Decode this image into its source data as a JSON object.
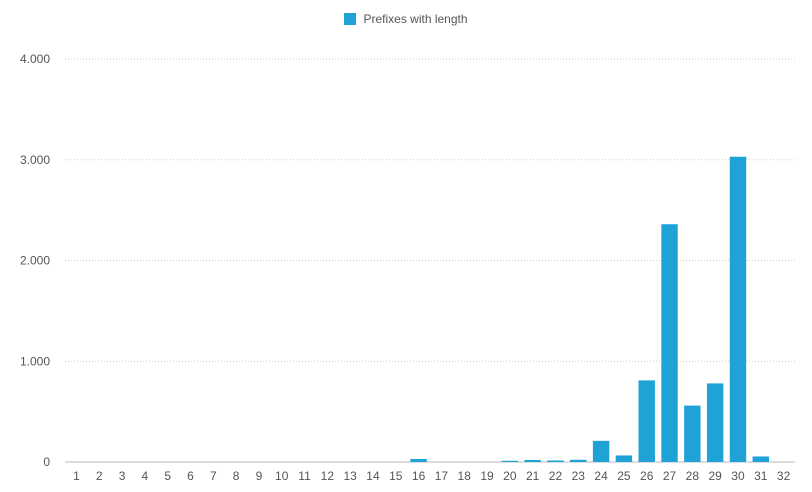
{
  "legend": {
    "label": "Prefixes with length",
    "color": "#1FA2D6"
  },
  "chart_data": {
    "type": "bar",
    "categories": [
      "1",
      "2",
      "3",
      "4",
      "5",
      "6",
      "7",
      "8",
      "9",
      "10",
      "11",
      "12",
      "13",
      "14",
      "15",
      "16",
      "17",
      "18",
      "19",
      "20",
      "21",
      "22",
      "23",
      "24",
      "25",
      "26",
      "27",
      "28",
      "29",
      "30",
      "31",
      "32"
    ],
    "series": [
      {
        "name": "Prefixes with length",
        "values": [
          0,
          0,
          0,
          0,
          0,
          0,
          0,
          0,
          0,
          0,
          0,
          0,
          0,
          0,
          0,
          30,
          0,
          0,
          0,
          12,
          20,
          15,
          22,
          210,
          65,
          810,
          2360,
          560,
          780,
          3030,
          55,
          0
        ]
      }
    ],
    "y_ticks": [
      "0",
      "1.000",
      "2.000",
      "3.000",
      "4.000"
    ],
    "ylim": [
      0,
      4000
    ],
    "grid": true,
    "legend_position": "top-center",
    "title": "",
    "xlabel": "",
    "ylabel": ""
  }
}
